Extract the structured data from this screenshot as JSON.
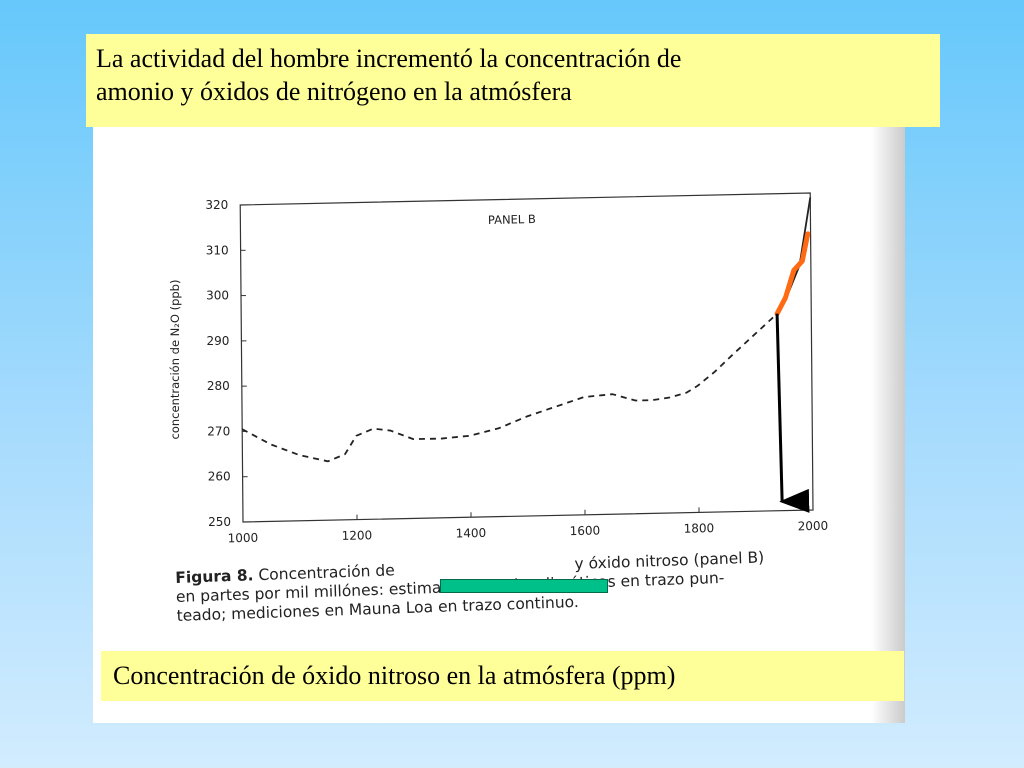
{
  "slide": {
    "title_lines": [
      "La actividad del hombre incrementó la concentración de",
      "amonio y óxidos de nitrógeno en la atmósfera"
    ],
    "subtitle": "Concentración de óxido nitroso en la atmósfera (ppm)"
  },
  "figure": {
    "caption_label": "Figura 8.",
    "caption_lines": [
      "Concentración de",
      "y óxido nitroso (panel B)",
      "en partes por mil millónes: estimaciones Paleoclimáticas en trazo pun-",
      "teado; mediciones en Mauna Loa en trazo continuo."
    ],
    "redaction_color": "#00c08a"
  },
  "chart_data": {
    "type": "line",
    "panel_label": "PANEL B",
    "xlabel": "",
    "ylabel": "concentración de N₂O (ppb)",
    "xlim": [
      1000,
      2000
    ],
    "ylim": [
      250,
      320
    ],
    "x_ticks": [
      1000,
      1200,
      1400,
      1600,
      1800,
      2000
    ],
    "y_ticks": [
      250,
      260,
      270,
      280,
      290,
      300,
      310,
      320
    ],
    "grid": false,
    "series": [
      {
        "style": "dashed",
        "color": "#222222",
        "x": [
          1000,
          1050,
          1100,
          1150,
          1180,
          1200,
          1230,
          1260,
          1300,
          1350,
          1400,
          1450,
          1500,
          1550,
          1600,
          1650,
          1690,
          1720,
          1750,
          1780,
          1800,
          1830,
          1860,
          1900,
          1940
        ],
        "y": [
          270.5,
          267,
          264.5,
          263,
          264.5,
          268.5,
          270,
          269.5,
          267.5,
          267.5,
          268,
          269.5,
          272,
          274,
          276,
          276.5,
          275,
          275,
          275.5,
          276.5,
          278,
          281,
          284.5,
          289,
          293.5
        ]
      },
      {
        "style": "solid",
        "color": "#222222",
        "x": [
          1940,
          1960,
          1980,
          2000
        ],
        "y": [
          293.5,
          298,
          304,
          319
        ]
      }
    ],
    "annotations": [
      {
        "type": "highlight_segment",
        "color": "#ff6a13",
        "x": [
          1940,
          1955,
          1965,
          1970,
          1985,
          1995
        ],
        "y": [
          293.5,
          297,
          301,
          303,
          305,
          311
        ]
      },
      {
        "type": "arrow",
        "color": "#000000",
        "from": [
          1940,
          293.5
        ],
        "to": [
          1946,
          252
        ]
      }
    ]
  }
}
